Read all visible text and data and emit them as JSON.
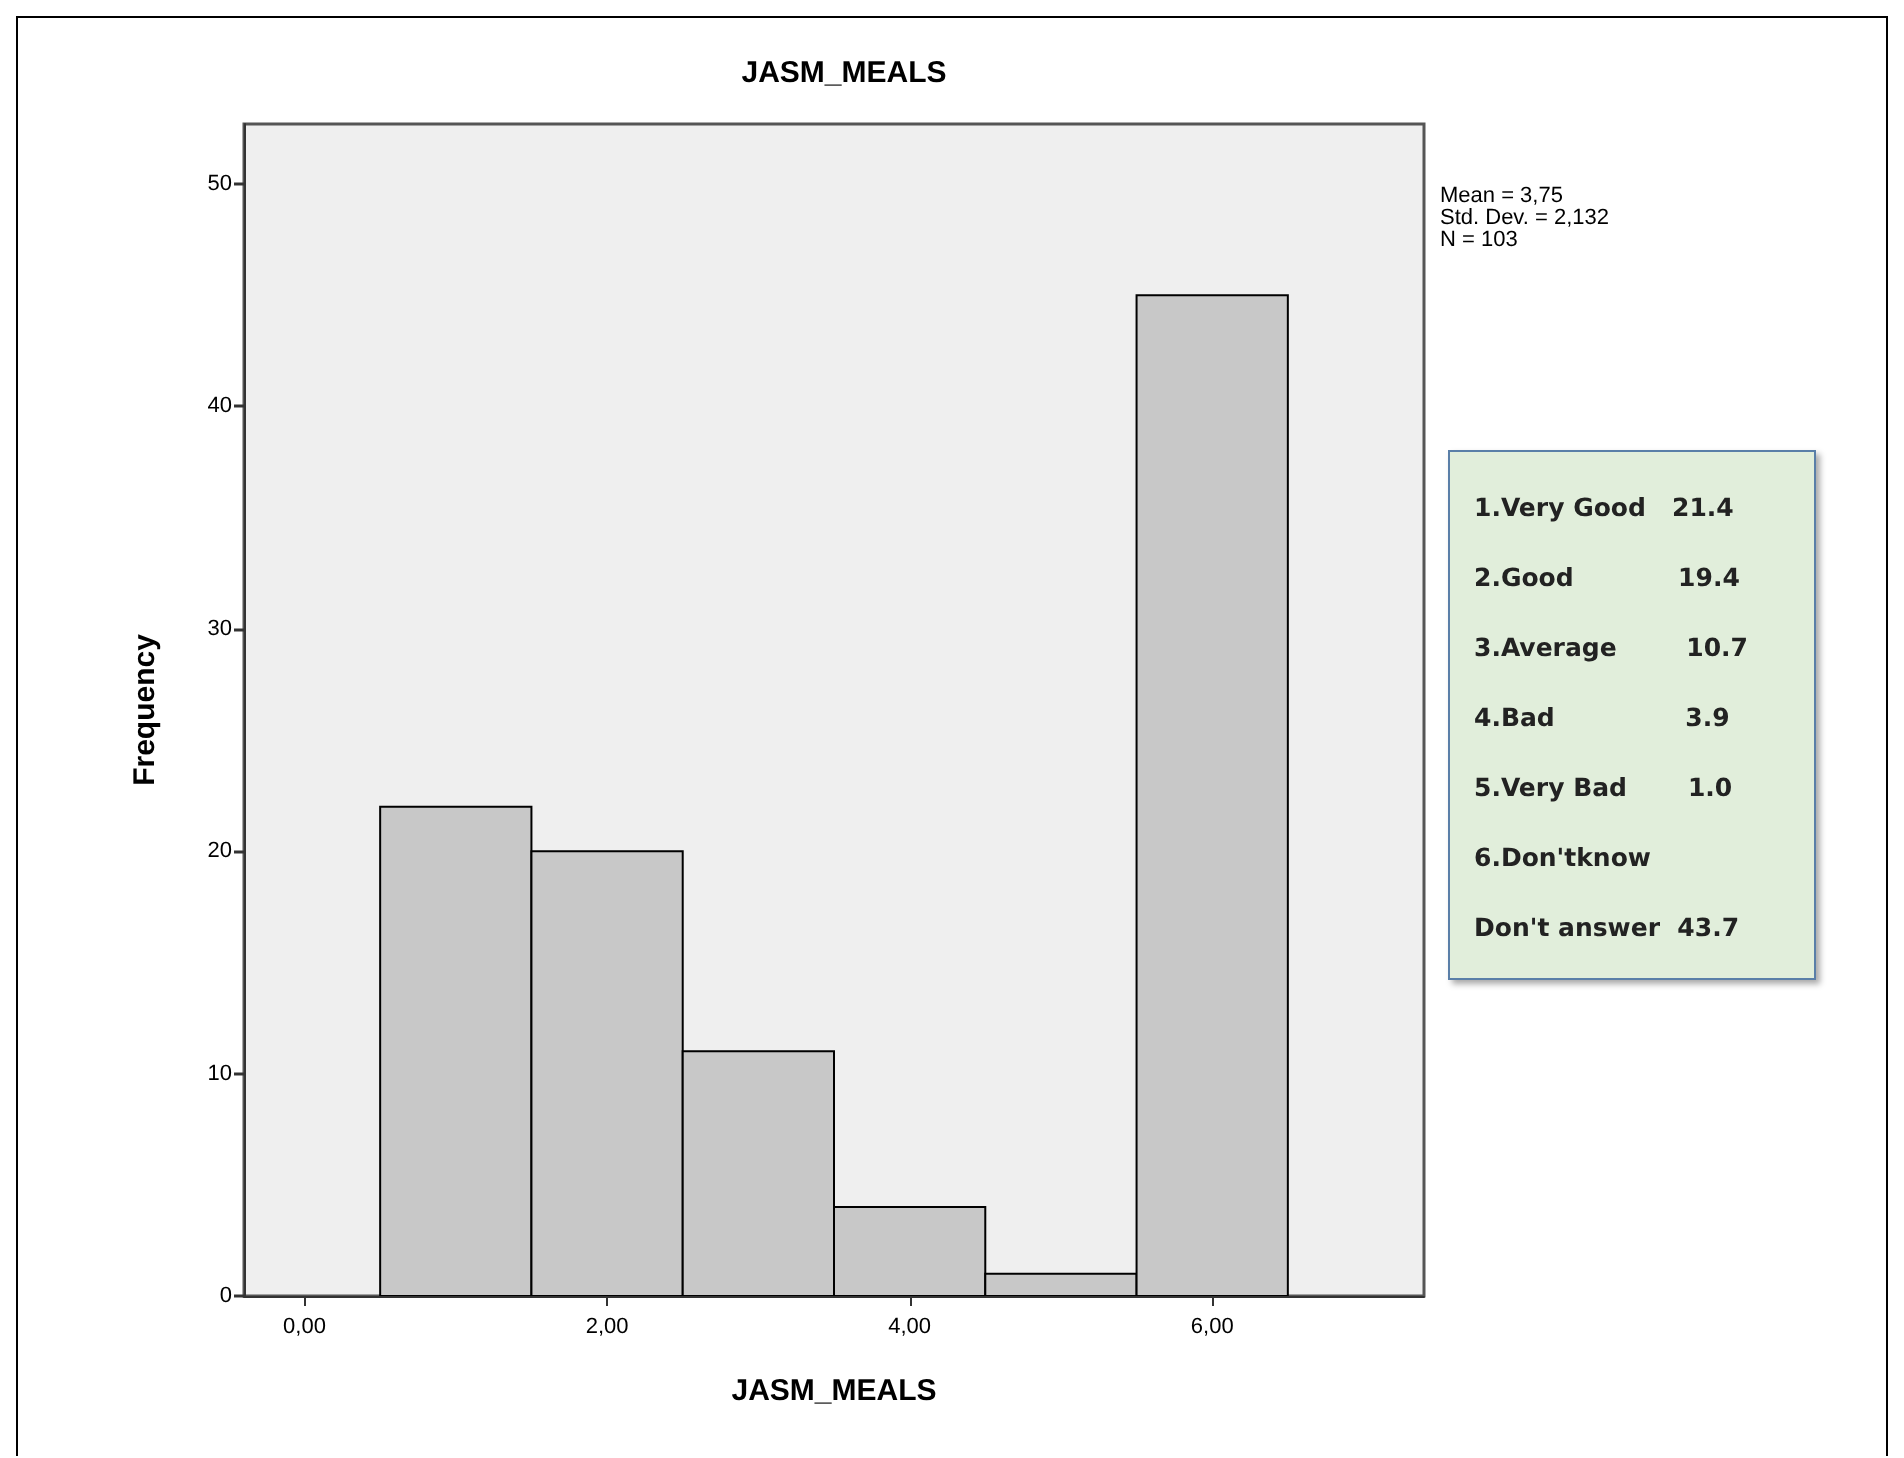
{
  "chart_data": {
    "type": "histogram",
    "title": "JASM_MEALS",
    "xlabel": "JASM_MEALS",
    "ylabel": "Frequency",
    "bins": [
      0.5,
      1.5,
      2.5,
      3.5,
      4.5,
      5.5,
      6.5
    ],
    "values": [
      22,
      20,
      11,
      4,
      1,
      45
    ],
    "color": "#c8c8c8",
    "xlim": [
      -0.4,
      7.4
    ],
    "xticks": [
      {
        "value": 0,
        "label": "0,00"
      },
      {
        "value": 2,
        "label": "2,00"
      },
      {
        "value": 4,
        "label": "4,00"
      },
      {
        "value": 6,
        "label": "6,00"
      }
    ],
    "ylim": [
      0,
      52.7
    ],
    "yticks": [
      0,
      10,
      20,
      30,
      40,
      50
    ],
    "grid": false,
    "annotations": [
      "Mean = 3,75\nStd. Dev. = 2,132\nN = 103",
      "1.Very Good   21.4\n2.Good            19.4\n3.Average        10.7\n4.Bad               3.9\n5.Very Bad       1.0\n6.Don'tknow\nDon't answer  43.7"
    ]
  }
}
